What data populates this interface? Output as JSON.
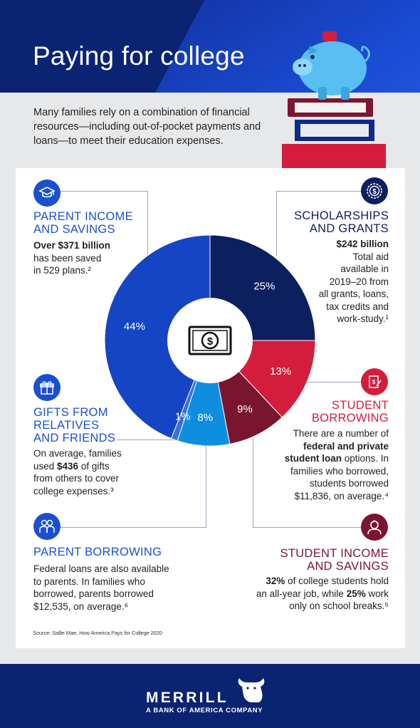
{
  "header": {
    "title": "Paying for college"
  },
  "intro": "Many families rely on a combination of financial resources—including out-of-pocket payments and loans—to meet their education expenses.",
  "sections": {
    "parent_income": {
      "heading_1": "PARENT INCOME",
      "heading_2": "AND SAVINGS",
      "bold": "Over $371 billion",
      "line_2": "has been saved",
      "line_3": "in 529 plans.²",
      "icon": "graduation-cap-icon"
    },
    "scholarships": {
      "heading_1": "SCHOLARSHIPS",
      "heading_2": "AND GRANTS",
      "bold": "$242 billion",
      "lines": [
        "Total aid",
        "available in",
        "2019–20 from",
        "all grants, loans,",
        "tax credits and",
        "work-study.¹"
      ],
      "icon": "dollar-badge-icon"
    },
    "gifts": {
      "heading_1": "GIFTS FROM",
      "heading_2": "RELATIVES",
      "heading_3": "AND FRIENDS",
      "line_1": "On average, families",
      "line_2_pre": "used ",
      "line_2_bold": "$436",
      "line_2_post": " of gifts",
      "line_3": "from others to cover",
      "line_4": "college expenses.³",
      "icon": "gift-icon"
    },
    "student_borrowing": {
      "heading_1": "STUDENT",
      "heading_2": "BORROWING",
      "line_1": "There are a number of",
      "line_2_bold": "federal and private",
      "line_3_bold": "student loan",
      "line_3_post": " options. In",
      "line_4": "families who borrowed,",
      "line_5": "students borrowed",
      "line_6": "$11,836, on average.⁴",
      "icon": "document-pen-icon"
    },
    "parent_borrowing": {
      "heading": "PARENT BORROWING",
      "line_1": "Federal loans are also available",
      "line_2": "to parents. In families who",
      "line_3": "borrowed, parents borrowed",
      "line_4": "$12,535, on average.⁶",
      "icon": "parents-icon"
    },
    "student_income": {
      "heading_1": "STUDENT INCOME",
      "heading_2": "AND SAVINGS",
      "line_1_bold": "32%",
      "line_1_post": " of college students hold",
      "line_2_pre": "an all-year job, while ",
      "line_2_bold": "25%",
      "line_2_post": " work",
      "line_3": "only on school breaks.⁵",
      "icon": "student-icon"
    }
  },
  "chart_data": {
    "type": "pie",
    "variant": "donut",
    "center_icon": "dollar-bill-icon",
    "slices": [
      {
        "label": "Scholarships and grants",
        "value": 25,
        "display": "25%",
        "color": "#0c1f5e"
      },
      {
        "label": "Student borrowing",
        "value": 13,
        "display": "13%",
        "color": "#d41d3c"
      },
      {
        "label": "Student income and savings",
        "value": 9,
        "display": "9%",
        "color": "#7a1530"
      },
      {
        "label": "Parent borrowing",
        "value": 8,
        "display": "8%",
        "color": "#0f8ee0"
      },
      {
        "label": "Gifts from relatives and friends",
        "value": 1,
        "display": "1%",
        "color": "#3a6fd8"
      },
      {
        "label": "Parent income and savings",
        "value": 44,
        "display": "44%",
        "color": "#1545c4"
      }
    ]
  },
  "source": "Source: Sallie Mae, How America Pays for College 2020",
  "footer": {
    "brand": "MERRILL",
    "tagline": "A BANK OF AMERICA COMPANY"
  }
}
